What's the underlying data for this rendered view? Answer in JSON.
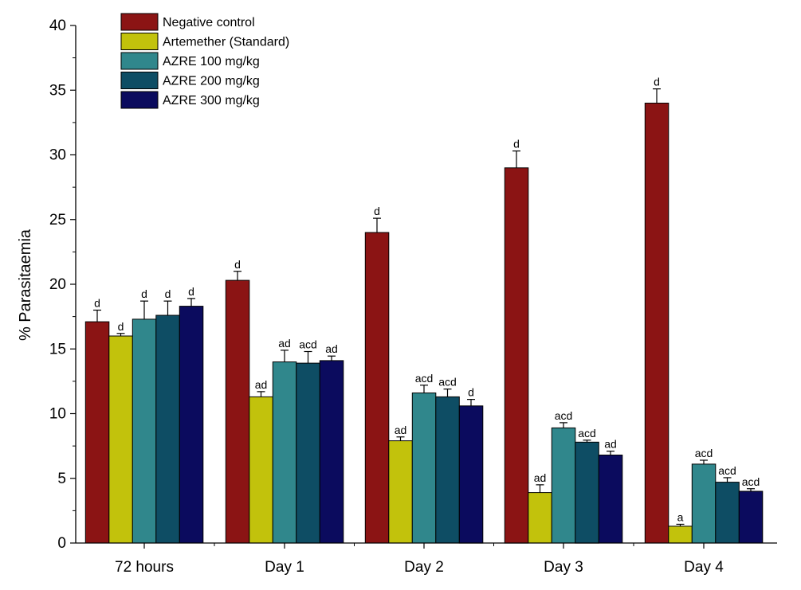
{
  "chart_data": {
    "type": "bar",
    "title": "",
    "xlabel": "",
    "ylabel": "% Parasitaemia",
    "ylim": [
      0,
      40
    ],
    "yticks": [
      0,
      5,
      10,
      15,
      20,
      25,
      30,
      35,
      40
    ],
    "grid": false,
    "legend_position": "top-left",
    "categories": [
      "72 hours",
      "Day 1",
      "Day 2",
      "Day 3",
      "Day 4"
    ],
    "series": [
      {
        "name": "Negative control",
        "color": "#8B1414",
        "values": [
          17.1,
          20.3,
          24.0,
          29.0,
          34.0
        ],
        "errors": [
          0.9,
          0.7,
          1.1,
          1.3,
          1.1
        ],
        "labels": [
          "d",
          "d",
          "d",
          "d",
          "d"
        ]
      },
      {
        "name": "Artemether (Standard)",
        "color": "#C2C20C",
        "values": [
          16.0,
          11.3,
          7.9,
          3.9,
          1.3
        ],
        "errors": [
          0.2,
          0.4,
          0.3,
          0.6,
          0.15
        ],
        "labels": [
          "d",
          "ad",
          "ad",
          "ad",
          "a"
        ]
      },
      {
        "name": "AZRE 100 mg/kg",
        "color": "#30878C",
        "values": [
          17.3,
          14.0,
          11.6,
          8.9,
          6.1
        ],
        "errors": [
          1.4,
          0.9,
          0.6,
          0.4,
          0.3
        ],
        "labels": [
          "d",
          "ad",
          "acd",
          "acd",
          "acd"
        ]
      },
      {
        "name": "AZRE 200 mg/kg",
        "color": "#0E4D64",
        "values": [
          17.6,
          13.9,
          11.3,
          7.8,
          4.7
        ],
        "errors": [
          1.1,
          0.9,
          0.6,
          0.15,
          0.35
        ],
        "labels": [
          "d",
          "acd",
          "acd",
          "acd",
          "acd"
        ]
      },
      {
        "name": "AZRE 300 mg/kg",
        "color": "#0B0B5E",
        "values": [
          18.3,
          14.1,
          10.6,
          6.8,
          4.0
        ],
        "errors": [
          0.6,
          0.35,
          0.5,
          0.3,
          0.2
        ],
        "labels": [
          "d",
          "ad",
          "d",
          "ad",
          "acd"
        ]
      }
    ]
  }
}
